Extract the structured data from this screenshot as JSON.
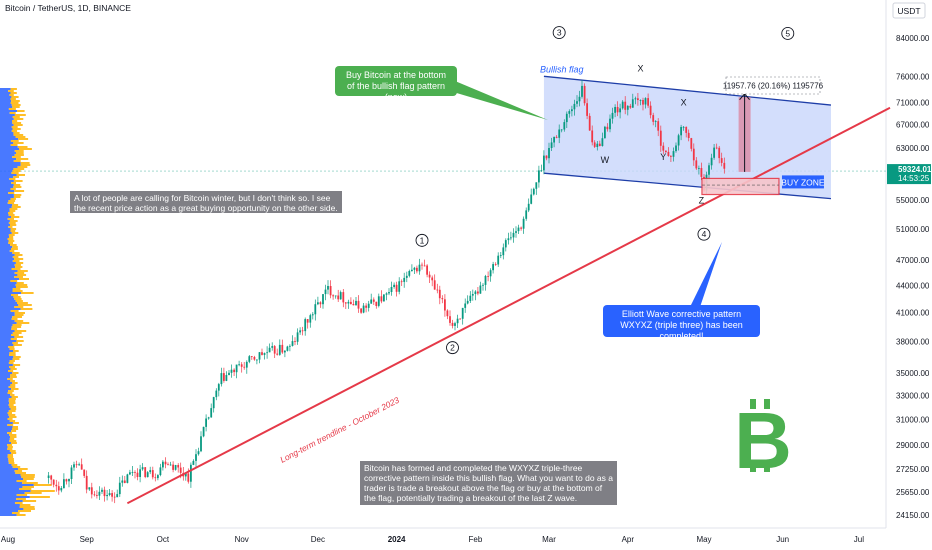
{
  "header": {
    "symbol_title": "Bitcoin / TetherUS, 1D, BINANCE",
    "currency": "USDT"
  },
  "chart_data": {
    "type": "candlestick",
    "x_tick_labels": [
      "Aug",
      "Sep",
      "Oct",
      "Nov",
      "Dec",
      "2024",
      "Feb",
      "Mar",
      "Apr",
      "May",
      "Jun",
      "Jul"
    ],
    "y_tick_labels": [
      84000,
      76000,
      71000,
      67000,
      63000,
      59000,
      55000,
      51000,
      47000,
      44000,
      41000,
      38000,
      35000,
      33000,
      31000,
      29000,
      27250,
      25650,
      24150
    ],
    "y_scale": "log",
    "last_price": "59324.01",
    "countdown": "14:53:25",
    "price_path": [
      [
        "2023-08-17",
        26600
      ],
      [
        "2023-08-21",
        26050
      ],
      [
        "2023-08-29",
        27650
      ],
      [
        "2023-09-01",
        25900
      ],
      [
        "2023-09-11",
        25350
      ],
      [
        "2023-09-19",
        27100
      ],
      [
        "2023-09-28",
        26900
      ],
      [
        "2023-10-02",
        27900
      ],
      [
        "2023-10-11",
        26700
      ],
      [
        "2023-10-24",
        34500
      ],
      [
        "2023-11-09",
        36800
      ],
      [
        "2023-11-20",
        37400
      ],
      [
        "2023-12-05",
        43600
      ],
      [
        "2023-12-18",
        41400
      ],
      [
        "2023-12-28",
        42800
      ],
      [
        "2024-01-11",
        46600
      ],
      [
        "2024-01-23",
        39700
      ],
      [
        "2024-02-01",
        43000
      ],
      [
        "2024-02-12",
        48800
      ],
      [
        "2024-02-20",
        52000
      ],
      [
        "2024-02-28",
        61500
      ],
      [
        "2024-03-05",
        66000
      ],
      [
        "2024-03-14",
        73500
      ],
      [
        "2024-03-19",
        62400
      ],
      [
        "2024-03-27",
        69800
      ],
      [
        "2024-04-08",
        71500
      ],
      [
        "2024-04-17",
        61000
      ],
      [
        "2024-04-23",
        66800
      ],
      [
        "2024-05-01",
        57000
      ],
      [
        "2024-05-05",
        63800
      ],
      [
        "2024-05-09",
        59324
      ]
    ],
    "bullish_flag": {
      "label": "Bullish flag"
    },
    "trendline": {
      "label": "Long-term trendline - October 2023"
    },
    "wave_labels": [
      "1",
      "2",
      "3",
      "4",
      "5"
    ],
    "corrective_labels": [
      "W",
      "X",
      "Y",
      "X",
      "Z"
    ],
    "target_label": "11957.76 (20.16%) 1195776",
    "buy_zone_label": "BUY ZONE",
    "volume_profile": {
      "colors": [
        "#2962ff",
        "#ffb300"
      ]
    }
  },
  "annotations": {
    "buy_bottom": "Buy Bitcoin at the bottom of the bullish flag pattern (now)",
    "winter": "A lot of people are calling for Bitcoin winter, but I don't think so. I see the recent price action as a great buying opportunity on the other side.",
    "elliott": "Elliott Wave corrective pattern WXYXZ (triple three) has been completed!",
    "summary": "Bitcoin has formed and completed the WXYXZ triple-three corrective pattern inside this bullish flag. What you want to do as a trader is trade a breakout above the flag or buy at the bottom of the flag, potentially trading a breakout of the last Z wave."
  },
  "colors": {
    "up": "#089981",
    "down": "#f23645",
    "trendline": "#e53948",
    "flag": "#2962ff",
    "note_grey": "#7f7f85",
    "note_green": "#4caf50",
    "logo": "#4caf50"
  }
}
